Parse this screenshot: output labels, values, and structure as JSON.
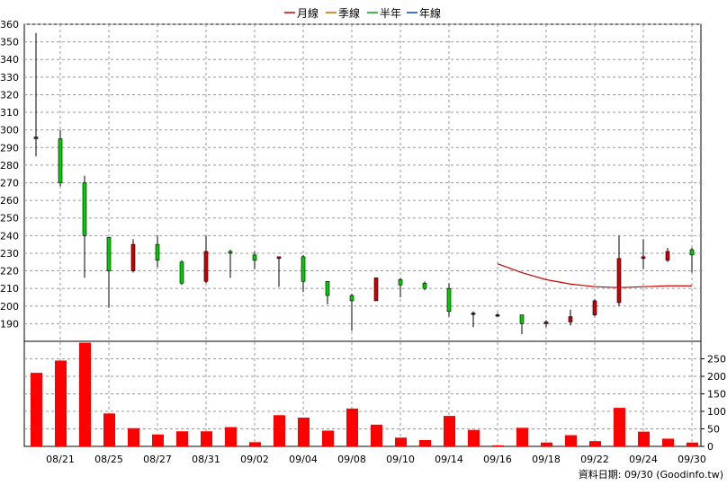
{
  "chart_data": {
    "type": "candlestick",
    "legend": [
      {
        "label": "月線",
        "color": "#cc0000"
      },
      {
        "label": "季線",
        "color": "#cc6600"
      },
      {
        "label": "半年",
        "color": "#00aa00"
      },
      {
        "label": "年線",
        "color": "#0044cc"
      }
    ],
    "price_axis": {
      "min": 180,
      "max": 360,
      "ticks": [
        190,
        200,
        210,
        220,
        230,
        240,
        250,
        260,
        270,
        280,
        290,
        300,
        310,
        320,
        330,
        340,
        350,
        360
      ]
    },
    "volume_axis": {
      "min": 0,
      "max": 300,
      "ticks": [
        0,
        50,
        100,
        150,
        200,
        250
      ]
    },
    "x_tick_labels": [
      "08/21",
      "08/25",
      "08/27",
      "08/31",
      "09/02",
      "09/04",
      "09/08",
      "09/10",
      "09/14",
      "09/16",
      "09/18",
      "09/22",
      "09/24",
      "09/30"
    ],
    "candles": [
      {
        "open": 296,
        "high": 355,
        "low": 285,
        "close": 295,
        "volume": 210
      },
      {
        "open": 270,
        "high": 300,
        "low": 268,
        "close": 295,
        "volume": 245
      },
      {
        "open": 240,
        "high": 274,
        "low": 216,
        "close": 270,
        "volume": 296
      },
      {
        "open": 220,
        "high": 239,
        "low": 199,
        "close": 239,
        "volume": 94
      },
      {
        "open": 235,
        "high": 238,
        "low": 219,
        "close": 220,
        "volume": 52
      },
      {
        "open": 226,
        "high": 240,
        "low": 222,
        "close": 235,
        "volume": 34
      },
      {
        "open": 213,
        "high": 226,
        "low": 212,
        "close": 225,
        "volume": 43
      },
      {
        "open": 231,
        "high": 240,
        "low": 213,
        "close": 214,
        "volume": 43
      },
      {
        "open": 230,
        "high": 232,
        "low": 216,
        "close": 231,
        "volume": 55
      },
      {
        "open": 226,
        "high": 231,
        "low": 221,
        "close": 229,
        "volume": 12
      },
      {
        "open": 228,
        "high": 228,
        "low": 211,
        "close": 227,
        "volume": 89
      },
      {
        "open": 214,
        "high": 229,
        "low": 208,
        "close": 228,
        "volume": 82
      },
      {
        "open": 206,
        "high": 214,
        "low": 201,
        "close": 214,
        "volume": 45
      },
      {
        "open": 203,
        "high": 207,
        "low": 186,
        "close": 206,
        "volume": 108
      },
      {
        "open": 216,
        "high": 216,
        "low": 203,
        "close": 203,
        "volume": 62
      },
      {
        "open": 212,
        "high": 216,
        "low": 205,
        "close": 215,
        "volume": 25
      },
      {
        "open": 210,
        "high": 214,
        "low": 209,
        "close": 213,
        "volume": 18
      },
      {
        "open": 197,
        "high": 213,
        "low": 194,
        "close": 210,
        "volume": 87
      },
      {
        "open": 196,
        "high": 197,
        "low": 188,
        "close": 196,
        "volume": 47
      },
      {
        "open": 195,
        "high": 196,
        "low": 195,
        "close": 195,
        "volume": 3
      },
      {
        "open": 190,
        "high": 195,
        "low": 184,
        "close": 195,
        "volume": 53
      },
      {
        "open": 191,
        "high": 192,
        "low": 188,
        "close": 190,
        "volume": 11
      },
      {
        "open": 194,
        "high": 198,
        "low": 189,
        "close": 191,
        "volume": 32
      },
      {
        "open": 203,
        "high": 204,
        "low": 194,
        "close": 195,
        "volume": 15
      },
      {
        "open": 227,
        "high": 240,
        "low": 200,
        "close": 202,
        "volume": 110
      },
      {
        "open": 228,
        "high": 238,
        "low": 221,
        "close": 227,
        "volume": 42
      },
      {
        "open": 231,
        "high": 233,
        "low": 225,
        "close": 226,
        "volume": 22
      },
      {
        "open": 229,
        "high": 233,
        "low": 219,
        "close": 232,
        "volume": 11
      }
    ],
    "ma_month": [
      {
        "i": 19,
        "v": 224
      },
      {
        "i": 20,
        "v": 219
      },
      {
        "i": 21,
        "v": 215
      },
      {
        "i": 22,
        "v": 212.5
      },
      {
        "i": 23,
        "v": 211
      },
      {
        "i": 24,
        "v": 210.5
      },
      {
        "i": 25,
        "v": 211
      },
      {
        "i": 26,
        "v": 211.5
      },
      {
        "i": 27,
        "v": 211.5
      }
    ],
    "colors": {
      "up": "#00cc00",
      "down": "#cc0000",
      "wick": "#000000",
      "volume": "#ff0000",
      "grid": "#999999"
    }
  },
  "footer": {
    "text": "資料日期: 09/30 (Goodinfo.tw)"
  }
}
